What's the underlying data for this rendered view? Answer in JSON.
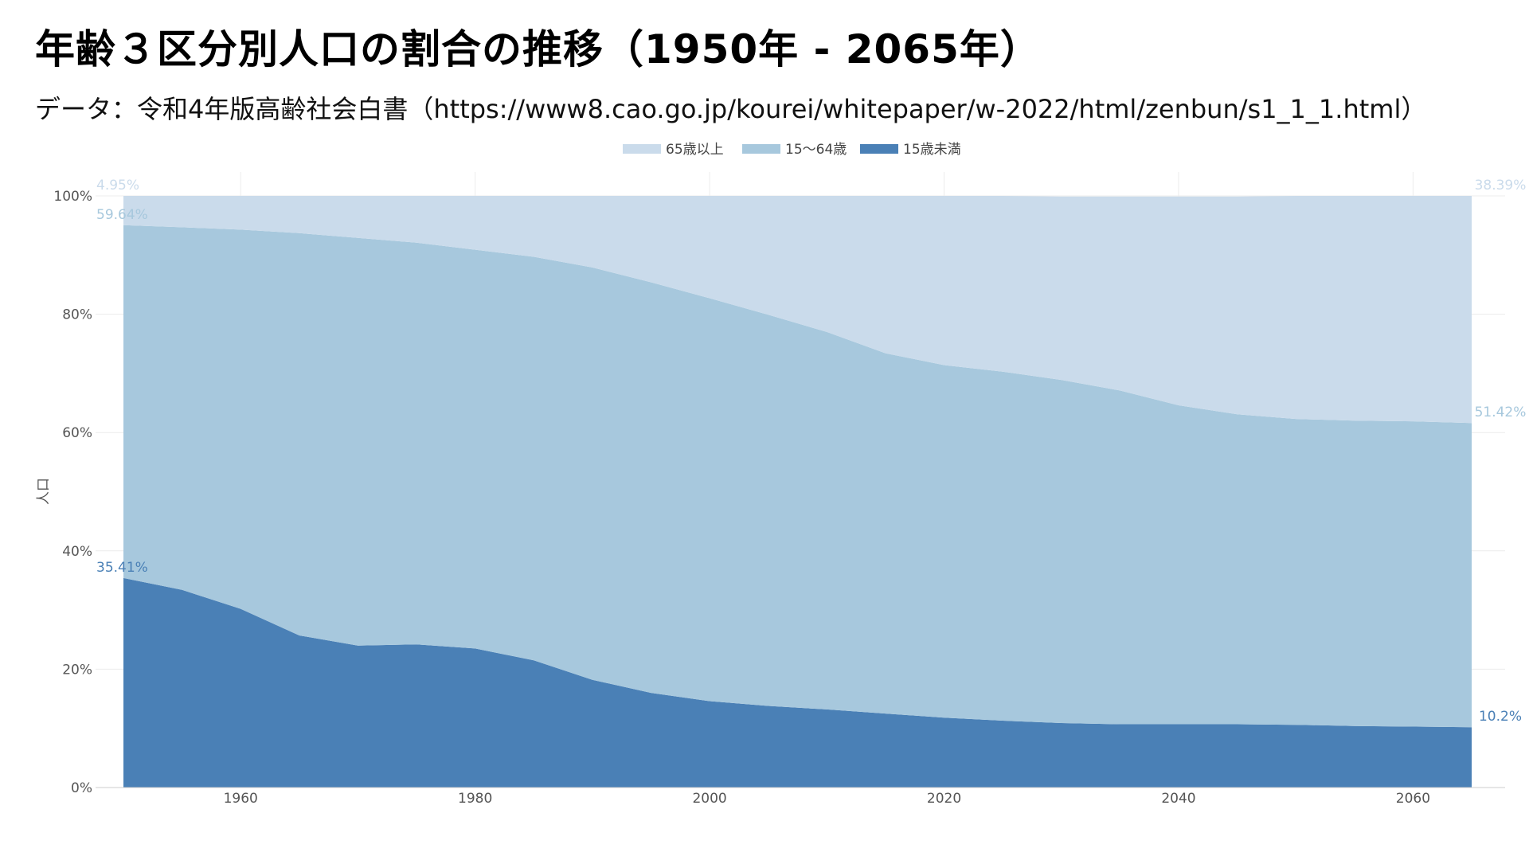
{
  "title": "年齢３区分別人口の割合の推移（1950年 - 2065年）",
  "subtitle": "データ：令和4年版高齢社会白書（https://www8.cao.go.jp/kourei/whitepaper/w-2022/html/zenbun/s1_1_1.html）",
  "colors": {
    "over65": "#cadbeb",
    "age15to64": "#a7c8dd",
    "under15": "#4a80b6",
    "grid": "#ececec",
    "axis": "#cccccc"
  },
  "chart_data": {
    "type": "area",
    "stacked": true,
    "x": [
      1950,
      1955,
      1960,
      1965,
      1970,
      1975,
      1980,
      1985,
      1990,
      1995,
      2000,
      2005,
      2010,
      2015,
      2020,
      2025,
      2030,
      2035,
      2040,
      2045,
      2050,
      2055,
      2060,
      2065
    ],
    "xticks": [
      "1960",
      "1980",
      "2000",
      "2020",
      "2040",
      "2060"
    ],
    "xlim": [
      1950,
      2065
    ],
    "yticks": [
      "0%",
      "20%",
      "40%",
      "60%",
      "80%",
      "100%"
    ],
    "ylim": [
      0,
      100
    ],
    "ylabel": "人口",
    "legend_position": "top-center",
    "grid": true,
    "series": [
      {
        "name": "65歳以上",
        "key": "over65",
        "values": [
          4.95,
          5.3,
          5.7,
          6.3,
          7.1,
          7.9,
          9.1,
          10.3,
          12.1,
          14.6,
          17.4,
          20.2,
          23.0,
          26.6,
          28.6,
          29.8,
          31.0,
          32.8,
          35.3,
          36.8,
          37.7,
          38.0,
          38.1,
          38.39
        ]
      },
      {
        "name": "15～64歳",
        "key": "age15to64",
        "values": [
          59.64,
          61.3,
          64.1,
          68.0,
          68.9,
          67.9,
          67.4,
          68.2,
          69.7,
          69.4,
          68.1,
          66.1,
          63.8,
          60.9,
          59.6,
          59.0,
          58.0,
          56.4,
          53.9,
          52.4,
          51.7,
          51.6,
          51.6,
          51.42
        ]
      },
      {
        "name": "15歳未満",
        "key": "under15",
        "values": [
          35.41,
          33.4,
          30.2,
          25.7,
          24.0,
          24.2,
          23.5,
          21.5,
          18.2,
          16.0,
          14.6,
          13.8,
          13.2,
          12.5,
          11.8,
          11.3,
          10.9,
          10.7,
          10.7,
          10.7,
          10.6,
          10.4,
          10.3,
          10.2
        ]
      }
    ],
    "data_labels": [
      {
        "series": "65歳以上",
        "x": 1950,
        "text": "4.95%"
      },
      {
        "series": "15～64歳",
        "x": 1950,
        "text": "59.64%"
      },
      {
        "series": "15歳未満",
        "x": 1950,
        "text": "35.41%"
      },
      {
        "series": "65歳以上",
        "x": 2065,
        "text": "38.39%"
      },
      {
        "series": "15～64歳",
        "x": 2065,
        "text": "51.42%"
      },
      {
        "series": "15歳未満",
        "x": 2065,
        "text": "10.2%"
      }
    ]
  }
}
